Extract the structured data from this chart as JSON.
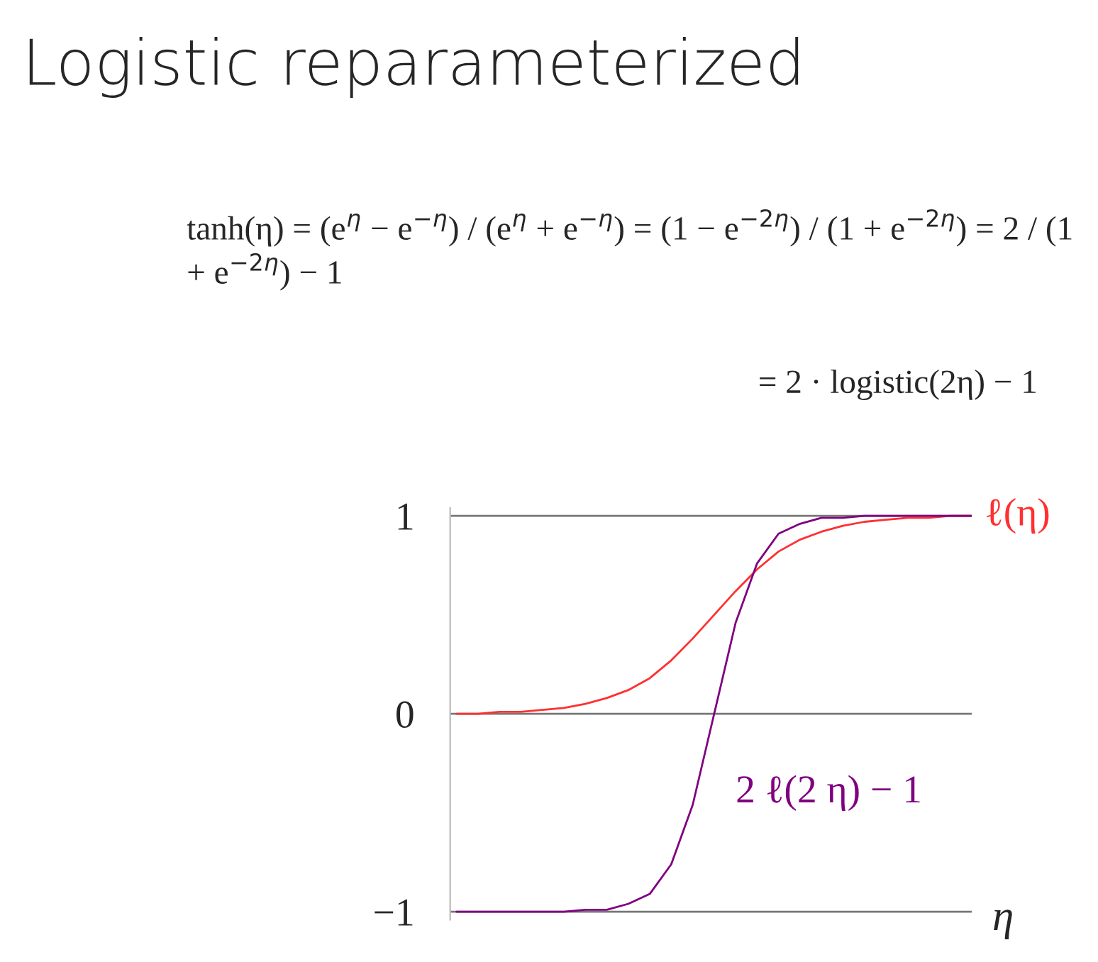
{
  "chart_data": {
    "type": "line",
    "title": "Logistic reparameterized",
    "annotations": [
      "tanh(η) = (e$^{η}$ − e$^{−η}$) / (e$^{η}$ + e$^{−η}$) = (1 − e$^{−2η}$) / (1 + e$^{−2η}$) = 2 / (1 + e$^{−2η}$) − 1",
      "= 2 · logistic(2η) − 1"
    ],
    "xlabel": "η",
    "categories": [
      null,
      null,
      null,
      null,
      null,
      null,
      null,
      null,
      null,
      null,
      null,
      null,
      null,
      null,
      null,
      null,
      null,
      null,
      null,
      null,
      null,
      null,
      null,
      null,
      null
    ],
    "series": [
      {
        "name": "ℓ(η)",
        "color": "#ff3030",
        "values": [
          0.0,
          0.0,
          0.01,
          0.01,
          0.02,
          0.03,
          0.05,
          0.08,
          0.12,
          0.18,
          0.27,
          0.38,
          0.5,
          0.62,
          0.73,
          0.82,
          0.88,
          0.92,
          0.95,
          0.97,
          0.98,
          0.99,
          0.99,
          1.0,
          1.0
        ]
      },
      {
        "name": "2 ℓ(2 η) − 1",
        "color": "#800080",
        "values": [
          -1.0,
          -1.0,
          -1.0,
          -1.0,
          -1.0,
          -1.0,
          -0.99,
          -0.99,
          -0.96,
          -0.91,
          -0.76,
          -0.46,
          0.0,
          0.46,
          0.76,
          0.91,
          0.96,
          0.99,
          0.99,
          1.0,
          1.0,
          1.0,
          1.0,
          1.0,
          1.0
        ]
      }
    ],
    "ylim": [
      -1.04,
      1.04
    ],
    "yticks": [
      -1,
      0,
      1
    ],
    "grid": "y",
    "legend": false,
    "marker": "none",
    "line_style": "solid"
  }
}
